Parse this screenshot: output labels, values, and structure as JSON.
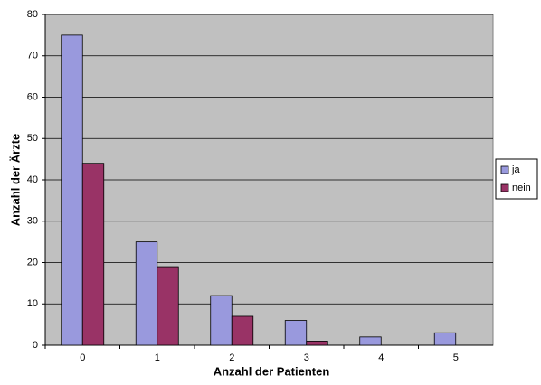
{
  "chart_data": {
    "type": "bar",
    "x_label": "Anzahl der Patienten",
    "y_label": "Anzahl der Ärzte",
    "categories": [
      "0",
      "1",
      "2",
      "3",
      "4",
      "5"
    ],
    "series": [
      {
        "name": "ja",
        "color": "#9999dd",
        "values": [
          75,
          25,
          12,
          6,
          2,
          3
        ]
      },
      {
        "name": "nein",
        "color": "#993366",
        "values": [
          44,
          19,
          7,
          1,
          0,
          0
        ]
      }
    ],
    "ylim": [
      0,
      80
    ],
    "yticks": [
      0,
      10,
      20,
      30,
      40,
      50,
      60,
      70,
      80
    ],
    "grid": true,
    "legend": "right",
    "background": "#c0c0c0"
  }
}
